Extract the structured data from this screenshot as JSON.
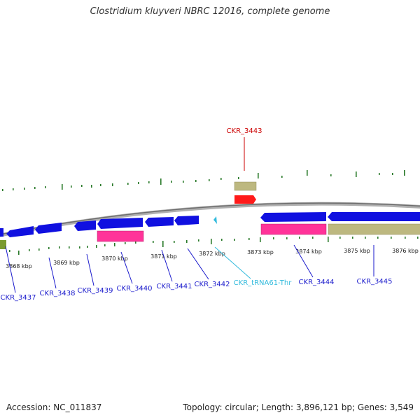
{
  "title": "Clostridium kluyveri NBRC 12016, complete genome",
  "footer": {
    "accession": "Accession: NC_011837",
    "stats": "Topology: circular; Length: 3,896,121 bp; Genes: 3,549"
  },
  "colors": {
    "backbone": "#8a8a8a",
    "gene": "#1010e0",
    "rna_gene": "#ff1a1a",
    "trna": "#33bbdd",
    "pink_feature": "#ff3399",
    "tan_feature": "#bdb880",
    "olive_feature": "#7a9a30",
    "gc_tick": "#2a7a2a",
    "label_blue": "#1a1acc",
    "label_red": "#cc0000",
    "label_cyan": "#33bbdd"
  },
  "scale_labels": [
    "3868 kbp",
    "3869 kbp",
    "3870 kbp",
    "3871 kbp",
    "3872 kbp",
    "3873 kbp",
    "3874 kbp",
    "3875 kbp",
    "3876 kbp"
  ],
  "genes": [
    {
      "id": "CKR_3437",
      "color": "label_blue"
    },
    {
      "id": "CKR_3438",
      "color": "label_blue"
    },
    {
      "id": "CKR_3439",
      "color": "label_blue"
    },
    {
      "id": "CKR_3440",
      "color": "label_blue"
    },
    {
      "id": "CKR_3441",
      "color": "label_blue"
    },
    {
      "id": "CKR_3442",
      "color": "label_blue"
    },
    {
      "id": "CKR_tRNA61-Thr",
      "color": "label_cyan"
    },
    {
      "id": "CKR_3443",
      "color": "label_red"
    },
    {
      "id": "CKR_3444",
      "color": "label_blue"
    },
    {
      "id": "CKR_3445",
      "color": "label_blue"
    }
  ]
}
